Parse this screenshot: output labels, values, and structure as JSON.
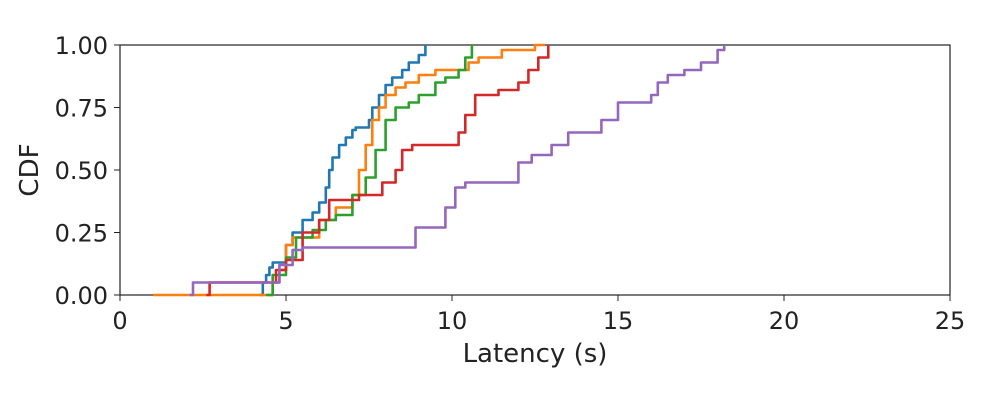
{
  "chart_data": {
    "type": "line",
    "title": "",
    "xlabel": "Latency (s)",
    "ylabel": "CDF",
    "xlim": [
      0,
      25
    ],
    "ylim": [
      0,
      1
    ],
    "xticks": [
      0,
      5,
      10,
      15,
      20,
      25
    ],
    "yticks": [
      0.0,
      0.25,
      0.5,
      0.75,
      1.0
    ],
    "xtick_labels": [
      "0",
      "5",
      "10",
      "15",
      "20",
      "25"
    ],
    "ytick_labels": [
      "0.00",
      "0.25",
      "0.50",
      "0.75",
      "1.00"
    ],
    "grid": false,
    "legend": "none",
    "series": [
      {
        "color": "#1f77b4",
        "x": [
          4.2,
          4.3,
          4.4,
          4.5,
          4.6,
          5.0,
          5.2,
          5.5,
          5.8,
          6.0,
          6.2,
          6.3,
          6.4,
          6.6,
          6.8,
          7.0,
          7.1,
          7.3,
          7.5,
          7.6,
          7.8,
          8.0,
          8.2,
          8.5,
          8.7,
          9.0,
          9.2
        ],
        "y": [
          0.0,
          0.05,
          0.08,
          0.11,
          0.13,
          0.2,
          0.25,
          0.3,
          0.33,
          0.37,
          0.43,
          0.5,
          0.55,
          0.6,
          0.63,
          0.66,
          0.67,
          0.67,
          0.7,
          0.75,
          0.8,
          0.84,
          0.87,
          0.9,
          0.93,
          0.96,
          1.0
        ]
      },
      {
        "color": "#ff7f0e",
        "x": [
          1.0,
          1.2,
          4.5,
          4.6,
          4.8,
          5.0,
          5.2,
          5.5,
          6.0,
          6.5,
          7.0,
          7.2,
          7.4,
          7.6,
          7.8,
          8.0,
          8.3,
          8.6,
          9.0,
          9.5,
          10.3,
          10.5,
          10.8,
          11.5,
          12.2,
          12.5,
          12.8
        ],
        "y": [
          0.0,
          0.0,
          0.0,
          0.05,
          0.1,
          0.2,
          0.23,
          0.23,
          0.3,
          0.35,
          0.4,
          0.5,
          0.6,
          0.7,
          0.75,
          0.8,
          0.83,
          0.85,
          0.88,
          0.9,
          0.9,
          0.93,
          0.95,
          0.98,
          0.98,
          1.0,
          1.0
        ]
      },
      {
        "color": "#2ca02c",
        "x": [
          4.4,
          4.6,
          5.0,
          5.3,
          5.8,
          6.2,
          6.5,
          7.0,
          7.4,
          7.7,
          8.0,
          8.3,
          8.7,
          9.0,
          9.5,
          9.8,
          10.2,
          10.4,
          10.6
        ],
        "y": [
          0.0,
          0.08,
          0.15,
          0.23,
          0.26,
          0.3,
          0.32,
          0.4,
          0.47,
          0.58,
          0.7,
          0.75,
          0.77,
          0.8,
          0.85,
          0.87,
          0.9,
          0.95,
          1.0
        ]
      },
      {
        "color": "#d62728",
        "x": [
          2.6,
          2.7,
          4.5,
          4.7,
          5.0,
          5.5,
          6.0,
          6.3,
          6.6,
          7.2,
          7.7,
          7.9,
          8.3,
          8.5,
          8.8,
          10.0,
          10.2,
          10.4,
          10.7,
          11.0,
          11.4,
          12.0,
          12.3,
          12.6,
          12.9
        ],
        "y": [
          0.0,
          0.05,
          0.05,
          0.1,
          0.14,
          0.25,
          0.3,
          0.38,
          0.38,
          0.4,
          0.4,
          0.45,
          0.5,
          0.58,
          0.6,
          0.6,
          0.65,
          0.72,
          0.8,
          0.8,
          0.82,
          0.85,
          0.9,
          0.95,
          1.0
        ]
      },
      {
        "color": "#9467bd",
        "x": [
          2.1,
          2.2,
          4.5,
          4.8,
          5.2,
          5.5,
          8.7,
          8.9,
          9.6,
          9.8,
          10.1,
          10.4,
          11.0,
          12.0,
          12.4,
          13.0,
          13.5,
          14.5,
          15.0,
          16.0,
          16.2,
          16.5,
          17.0,
          17.5,
          18.0,
          18.2
        ],
        "y": [
          0.0,
          0.05,
          0.05,
          0.12,
          0.18,
          0.19,
          0.19,
          0.27,
          0.27,
          0.35,
          0.43,
          0.45,
          0.45,
          0.53,
          0.56,
          0.6,
          0.65,
          0.7,
          0.77,
          0.8,
          0.85,
          0.88,
          0.9,
          0.93,
          0.98,
          1.0
        ]
      }
    ]
  }
}
